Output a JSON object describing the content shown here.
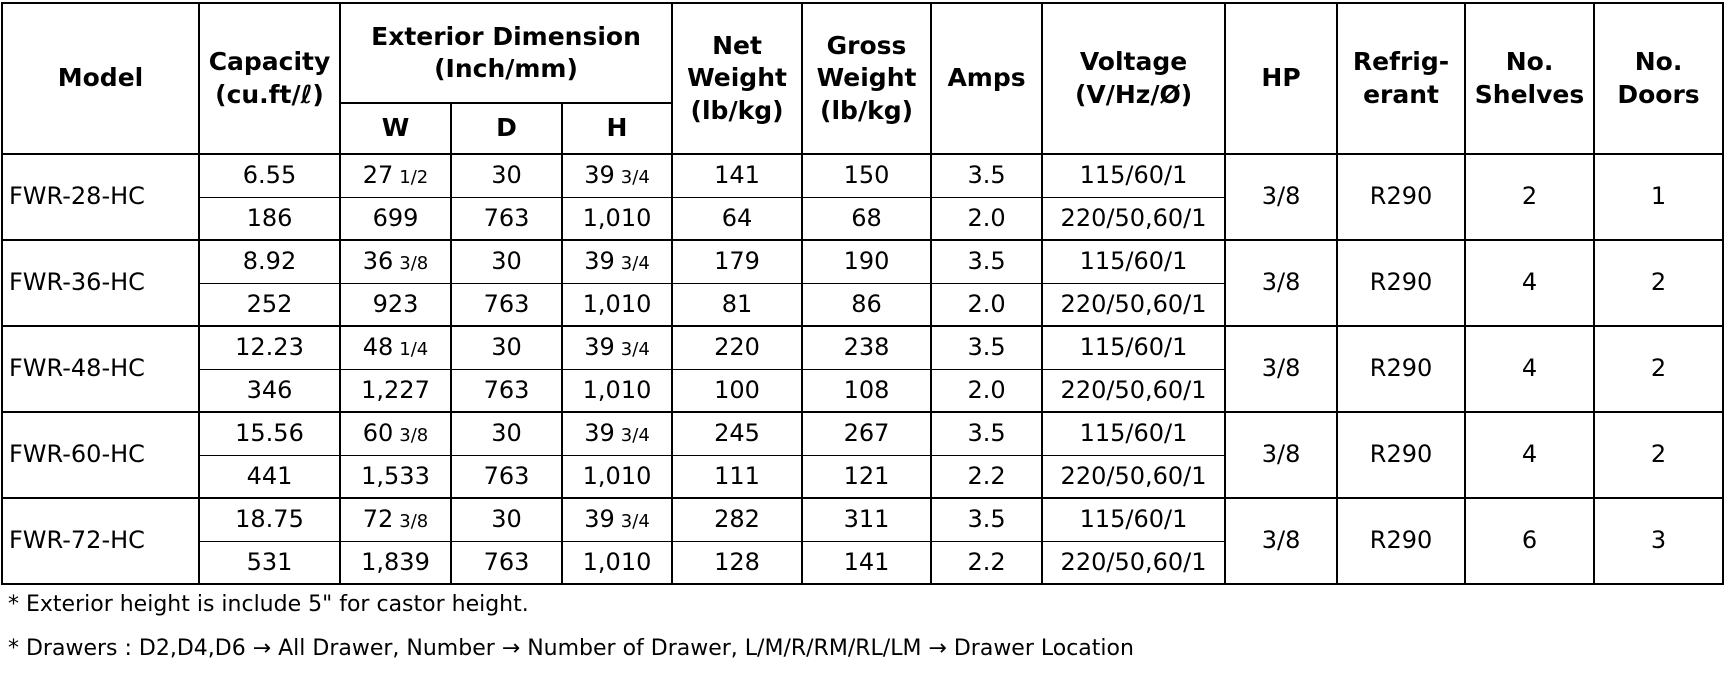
{
  "header": {
    "model": "Model",
    "capacity": "Capacity\n(cu.ft/ℓ)",
    "exterior_dimension": "Exterior Dimension\n(Inch/mm)",
    "w": "W",
    "d": "D",
    "h": "H",
    "net_weight": "Net\nWeight\n(lb/kg)",
    "gross_weight": "Gross\nWeight\n(lb/kg)",
    "amps": "Amps",
    "voltage": "Voltage\n(V/Hz/Ø)",
    "hp": "HP",
    "refrigerant": "Refrig-\nerant",
    "shelves": "No.\nShelves",
    "doors": "No.\nDoors"
  },
  "models": [
    {
      "model": "FWR-28-HC",
      "hp": "3/8",
      "refrigerant": "R290",
      "shelves": "2",
      "doors": "1",
      "rows": [
        {
          "capacity": "6.55",
          "w": [
            "27",
            "1/2"
          ],
          "d": "30",
          "h": [
            "39",
            "3/4"
          ],
          "net": "141",
          "gross": "150",
          "amps": "3.5",
          "voltage": "115/60/1"
        },
        {
          "capacity": "186",
          "w": [
            "699"
          ],
          "d": "763",
          "h": [
            "1,010"
          ],
          "net": "64",
          "gross": "68",
          "amps": "2.0",
          "voltage": "220/50,60/1"
        }
      ]
    },
    {
      "model": "FWR-36-HC",
      "hp": "3/8",
      "refrigerant": "R290",
      "shelves": "4",
      "doors": "2",
      "rows": [
        {
          "capacity": "8.92",
          "w": [
            "36",
            "3/8"
          ],
          "d": "30",
          "h": [
            "39",
            "3/4"
          ],
          "net": "179",
          "gross": "190",
          "amps": "3.5",
          "voltage": "115/60/1"
        },
        {
          "capacity": "252",
          "w": [
            "923"
          ],
          "d": "763",
          "h": [
            "1,010"
          ],
          "net": "81",
          "gross": "86",
          "amps": "2.0",
          "voltage": "220/50,60/1"
        }
      ]
    },
    {
      "model": "FWR-48-HC",
      "hp": "3/8",
      "refrigerant": "R290",
      "shelves": "4",
      "doors": "2",
      "rows": [
        {
          "capacity": "12.23",
          "w": [
            "48",
            "1/4"
          ],
          "d": "30",
          "h": [
            "39",
            "3/4"
          ],
          "net": "220",
          "gross": "238",
          "amps": "3.5",
          "voltage": "115/60/1"
        },
        {
          "capacity": "346",
          "w": [
            "1,227"
          ],
          "d": "763",
          "h": [
            "1,010"
          ],
          "net": "100",
          "gross": "108",
          "amps": "2.0",
          "voltage": "220/50,60/1"
        }
      ]
    },
    {
      "model": "FWR-60-HC",
      "hp": "3/8",
      "refrigerant": "R290",
      "shelves": "4",
      "doors": "2",
      "rows": [
        {
          "capacity": "15.56",
          "w": [
            "60",
            "3/8"
          ],
          "d": "30",
          "h": [
            "39",
            "3/4"
          ],
          "net": "245",
          "gross": "267",
          "amps": "3.5",
          "voltage": "115/60/1"
        },
        {
          "capacity": "441",
          "w": [
            "1,533"
          ],
          "d": "763",
          "h": [
            "1,010"
          ],
          "net": "111",
          "gross": "121",
          "amps": "2.2",
          "voltage": "220/50,60/1"
        }
      ]
    },
    {
      "model": "FWR-72-HC",
      "hp": "3/8",
      "refrigerant": "R290",
      "shelves": "6",
      "doors": "3",
      "rows": [
        {
          "capacity": "18.75",
          "w": [
            "72",
            "3/8"
          ],
          "d": "30",
          "h": [
            "39",
            "3/4"
          ],
          "net": "282",
          "gross": "311",
          "amps": "3.5",
          "voltage": "115/60/1"
        },
        {
          "capacity": "531",
          "w": [
            "1,839"
          ],
          "d": "763",
          "h": [
            "1,010"
          ],
          "net": "128",
          "gross": "141",
          "amps": "2.2",
          "voltage": "220/50,60/1"
        }
      ]
    }
  ],
  "notes": [
    "* Exterior height is include 5\" for castor height.",
    "* Drawers : D2,D4,D6 → All Drawer, Number → Number of Drawer, L/M/R/RM/RL/LM → Drawer Location"
  ]
}
